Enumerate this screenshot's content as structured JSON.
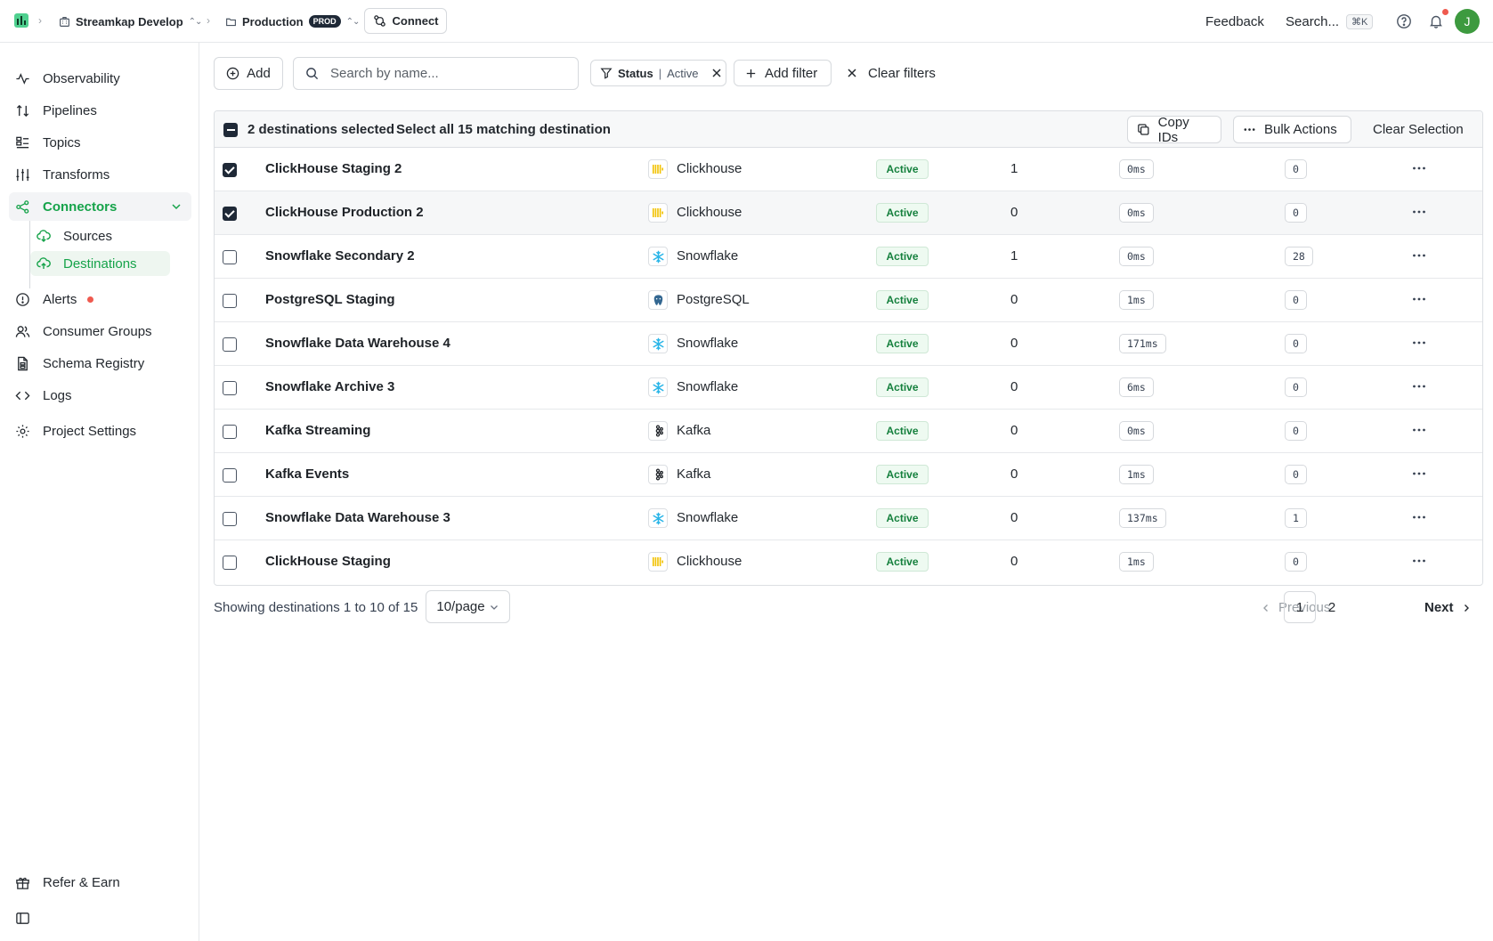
{
  "topbar": {
    "org": "Streamkap Develop",
    "project": "Production",
    "project_badge": "PROD",
    "connect_label": "Connect",
    "feedback_label": "Feedback",
    "search_label": "Search...",
    "search_shortcut": "⌘K",
    "avatar_initial": "J"
  },
  "sidebar": {
    "items": [
      {
        "label": "Observability",
        "icon": "activity-icon"
      },
      {
        "label": "Pipelines",
        "icon": "arrows-updown-icon"
      },
      {
        "label": "Topics",
        "icon": "list-icon"
      },
      {
        "label": "Transforms",
        "icon": "sliders-icon"
      },
      {
        "label": "Connectors",
        "icon": "share-nodes-icon"
      },
      {
        "label": "Alerts",
        "icon": "alert-circle-icon"
      },
      {
        "label": "Consumer Groups",
        "icon": "users-icon"
      },
      {
        "label": "Schema Registry",
        "icon": "file-schema-icon"
      },
      {
        "label": "Logs",
        "icon": "code-icon"
      },
      {
        "label": "Project Settings",
        "icon": "gear-icon"
      }
    ],
    "sub_items": [
      {
        "label": "Sources",
        "icon": "cloud-download-icon"
      },
      {
        "label": "Destinations",
        "icon": "cloud-upload-icon"
      }
    ],
    "footer": {
      "refer_label": "Refer & Earn"
    }
  },
  "toolbar": {
    "add_label": "Add",
    "search_placeholder": "Search by name...",
    "filter_key": "Status",
    "filter_sep": "|",
    "filter_value": "Active",
    "add_filter_label": "Add filter",
    "clear_filters_label": "Clear filters"
  },
  "selection": {
    "selected_text": "2 destinations selected",
    "select_all_text": "Select all 15 matching destination",
    "copy_ids_label": "Copy IDs",
    "bulk_actions_label": "Bulk Actions",
    "clear_selection_label": "Clear Selection"
  },
  "rows": [
    {
      "name": "ClickHouse Staging 2",
      "connector": "Clickhouse",
      "connector_icon": "clickhouse-icon",
      "status": "Active",
      "count": "1",
      "latency": "0ms",
      "lag": "0",
      "checked": true
    },
    {
      "name": "ClickHouse Production 2",
      "connector": "Clickhouse",
      "connector_icon": "clickhouse-icon",
      "status": "Active",
      "count": "0",
      "latency": "0ms",
      "lag": "0",
      "checked": true
    },
    {
      "name": "Snowflake Secondary 2",
      "connector": "Snowflake",
      "connector_icon": "snowflake-icon",
      "status": "Active",
      "count": "1",
      "latency": "0ms",
      "lag": "28",
      "checked": false
    },
    {
      "name": "PostgreSQL Staging",
      "connector": "PostgreSQL",
      "connector_icon": "postgresql-icon",
      "status": "Active",
      "count": "0",
      "latency": "1ms",
      "lag": "0",
      "checked": false
    },
    {
      "name": "Snowflake Data Warehouse 4",
      "connector": "Snowflake",
      "connector_icon": "snowflake-icon",
      "status": "Active",
      "count": "0",
      "latency": "171ms",
      "lag": "0",
      "checked": false
    },
    {
      "name": "Snowflake Archive 3",
      "connector": "Snowflake",
      "connector_icon": "snowflake-icon",
      "status": "Active",
      "count": "0",
      "latency": "6ms",
      "lag": "0",
      "checked": false
    },
    {
      "name": "Kafka Streaming",
      "connector": "Kafka",
      "connector_icon": "kafka-icon",
      "status": "Active",
      "count": "0",
      "latency": "0ms",
      "lag": "0",
      "checked": false
    },
    {
      "name": "Kafka Events",
      "connector": "Kafka",
      "connector_icon": "kafka-icon",
      "status": "Active",
      "count": "0",
      "latency": "1ms",
      "lag": "0",
      "checked": false
    },
    {
      "name": "Snowflake Data Warehouse 3",
      "connector": "Snowflake",
      "connector_icon": "snowflake-icon",
      "status": "Active",
      "count": "0",
      "latency": "137ms",
      "lag": "1",
      "checked": false
    },
    {
      "name": "ClickHouse Staging",
      "connector": "Clickhouse",
      "connector_icon": "clickhouse-icon",
      "status": "Active",
      "count": "0",
      "latency": "1ms",
      "lag": "0",
      "checked": false
    }
  ],
  "pagination": {
    "showing_text": "Showing destinations 1 to 10 of 15",
    "per_page": "10/page",
    "previous_label": "Previous",
    "pages": [
      "1",
      "2"
    ],
    "current_page": "1",
    "next_label": "Next"
  },
  "colors": {
    "accent": "#16a34a",
    "status_bg": "#eefaf1",
    "status_text": "#15803d",
    "alert_dot": "#ef5a4f",
    "avatar": "#3d9a3f"
  }
}
